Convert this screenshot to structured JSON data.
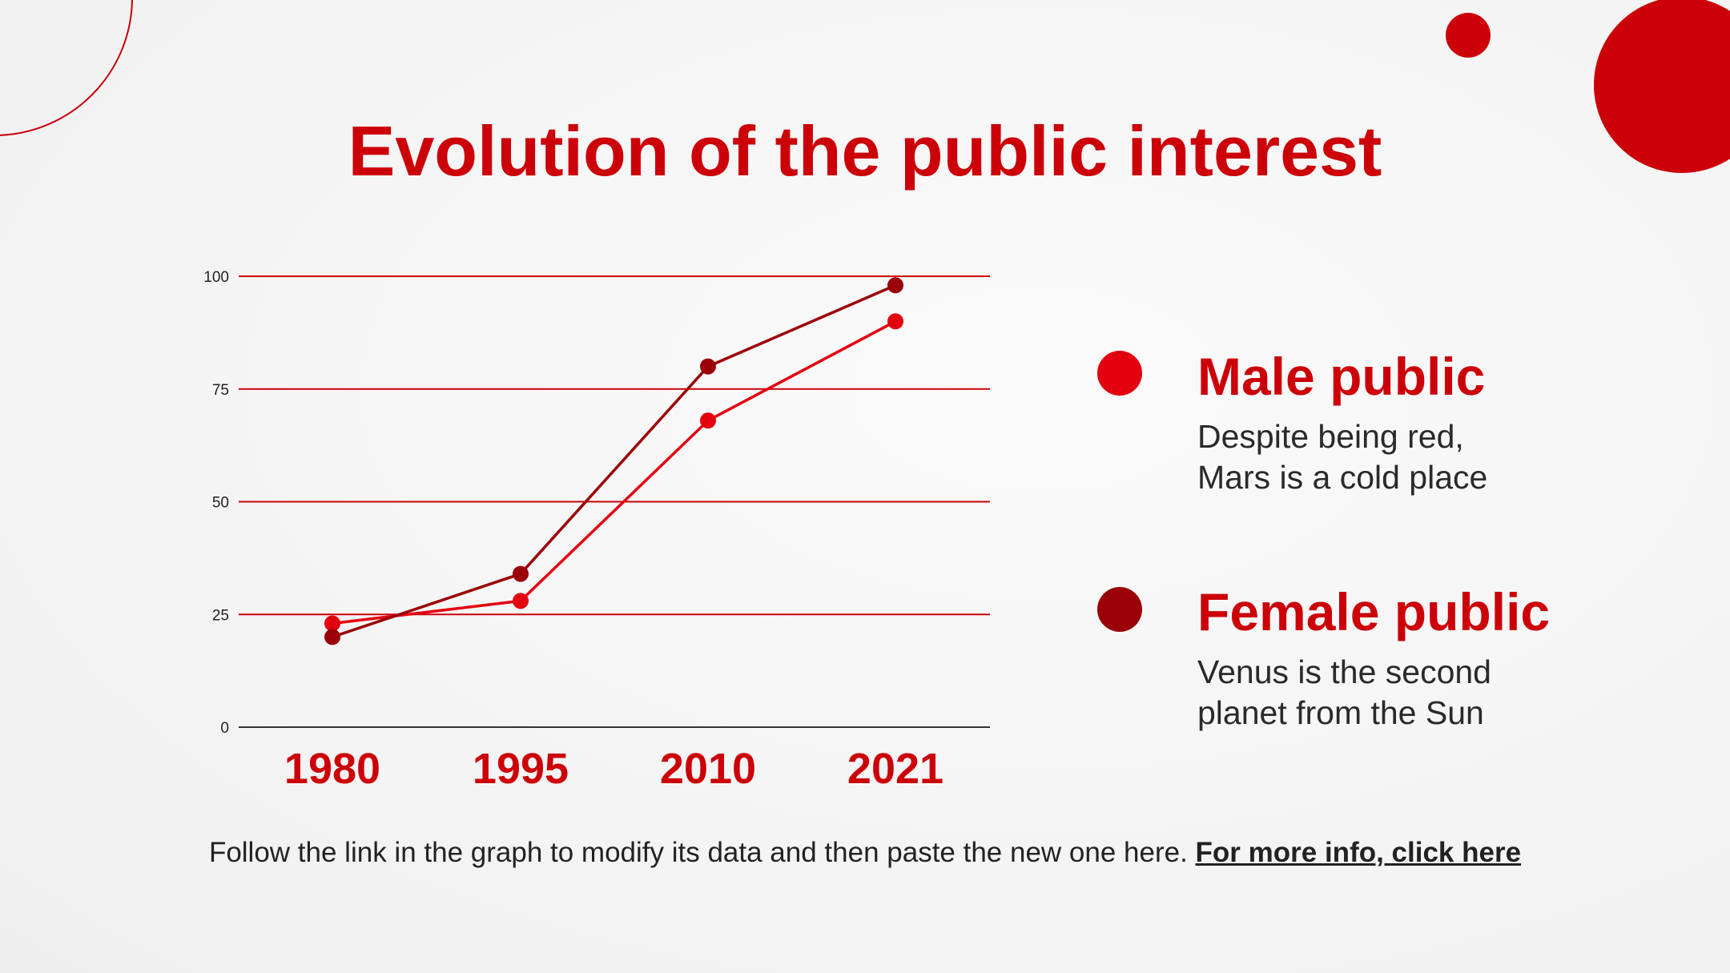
{
  "title": "Evolution of the public interest",
  "colors": {
    "accent": "#cc0008",
    "male": "#e3000f",
    "female": "#9b0008",
    "grid": "#cc0008",
    "axis": "#333333"
  },
  "chart_data": {
    "type": "line",
    "categories": [
      "1980",
      "1995",
      "2010",
      "2021"
    ],
    "ylim": [
      0,
      100
    ],
    "yticks": [
      0,
      25,
      50,
      75,
      100
    ],
    "grid": true,
    "legend_position": "right",
    "series": [
      {
        "name": "Male public",
        "color": "#e3000f",
        "values": [
          23,
          28,
          68,
          90
        ]
      },
      {
        "name": "Female public",
        "color": "#9b0008",
        "values": [
          20,
          34,
          80,
          98
        ]
      }
    ]
  },
  "legend": [
    {
      "title": "Male public",
      "description_lines": [
        "Despite being red,",
        "Mars is a cold place"
      ],
      "color": "#e3000f"
    },
    {
      "title": "Female public",
      "description_lines": [
        "Venus is the second",
        "planet from the Sun"
      ],
      "color": "#9b0008"
    }
  ],
  "footer": {
    "text": "Follow the link in the graph to modify its data and then paste the new one here.",
    "link_text": "For more info, click here"
  }
}
